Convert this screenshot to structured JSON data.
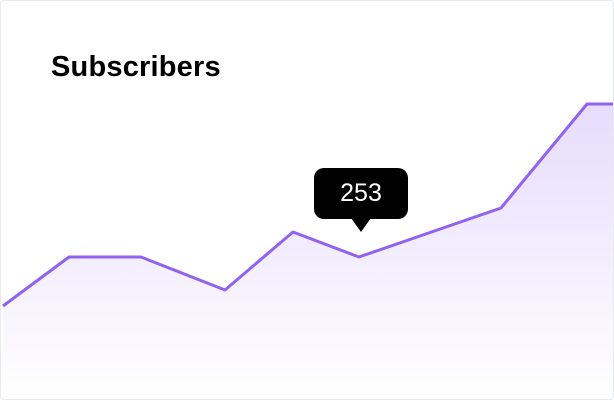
{
  "chart_data": {
    "type": "area",
    "title": "Subscribers",
    "x": [
      0,
      1,
      2,
      3,
      4,
      5,
      6,
      7,
      8
    ],
    "values": [
      204,
      253,
      253,
      220,
      278,
      253,
      302,
      406,
      406
    ],
    "ylim": [
      150,
      450
    ],
    "grid": false,
    "line_color": "#9162f0",
    "fill_color": "#e9e0fd",
    "tooltip": {
      "index": 5,
      "label": "253"
    }
  }
}
